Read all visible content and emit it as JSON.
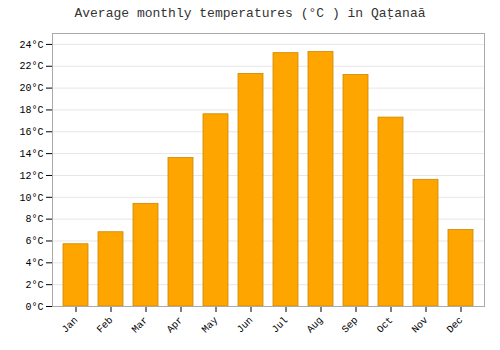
{
  "chart_data": {
    "type": "bar",
    "title": "Average monthly temperatures (°C ) in Qaṭanaā",
    "categories": [
      "Jan",
      "Feb",
      "Mar",
      "Apr",
      "May",
      "Jun",
      "Jul",
      "Aug",
      "Sep",
      "Oct",
      "Nov",
      "Dec"
    ],
    "values": [
      5.7,
      6.8,
      9.4,
      13.6,
      17.6,
      21.3,
      23.2,
      23.3,
      21.2,
      17.3,
      11.6,
      7.0
    ],
    "color": "#FFA500",
    "ylim": [
      0,
      25
    ],
    "yticks": [
      {
        "value": 0,
        "label": "0°C"
      },
      {
        "value": 2,
        "label": "2°C"
      },
      {
        "value": 4,
        "label": "4°C"
      },
      {
        "value": 6,
        "label": "6°C"
      },
      {
        "value": 8,
        "label": "8°C"
      },
      {
        "value": 10,
        "label": "10°C"
      },
      {
        "value": 12,
        "label": "12°C"
      },
      {
        "value": 14,
        "label": "14°C"
      },
      {
        "value": 16,
        "label": "16°C"
      },
      {
        "value": 18,
        "label": "18°C"
      },
      {
        "value": 20,
        "label": "20°C"
      },
      {
        "value": 22,
        "label": "22°C"
      },
      {
        "value": 24,
        "label": "24°C"
      }
    ],
    "grid": true
  }
}
